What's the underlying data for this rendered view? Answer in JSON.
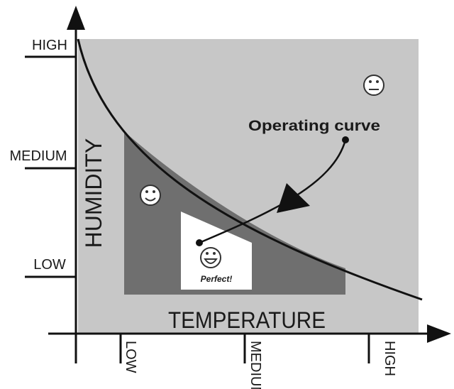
{
  "y_axis": {
    "title": "HUMIDITY",
    "ticks": [
      "HIGH",
      "MEDIUM",
      "LOW"
    ]
  },
  "x_axis": {
    "title": "TEMPERATURE",
    "ticks": [
      "LOW",
      "MEDIUM",
      "HIGH"
    ]
  },
  "annotations": {
    "curve_label": "Operating curve",
    "optimum_label": "Perfect!"
  }
}
